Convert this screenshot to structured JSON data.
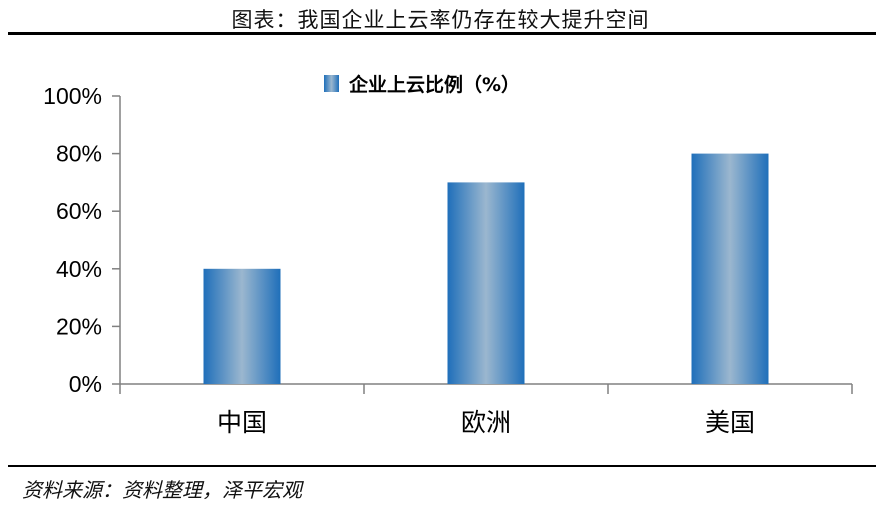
{
  "header": {
    "title": "图表：我国企业上云率仍存在较大提升空间"
  },
  "footer": {
    "source": "资料来源：资料整理，泽平宏观"
  },
  "chart_data": {
    "type": "bar",
    "categories": [
      "中国",
      "欧洲",
      "美国"
    ],
    "series": [
      {
        "name": "企业上云比例（%）",
        "values": [
          40,
          70,
          80
        ]
      }
    ],
    "ylim": [
      0,
      100
    ],
    "yticks": [
      "0%",
      "20%",
      "40%",
      "60%",
      "80%",
      "100%"
    ],
    "ytick_values": [
      0,
      20,
      40,
      60,
      80,
      100
    ],
    "legend_position": "top",
    "grid": false,
    "bar_colors": {
      "edge": "#1f6fba",
      "center": "#9bb7cf"
    }
  }
}
